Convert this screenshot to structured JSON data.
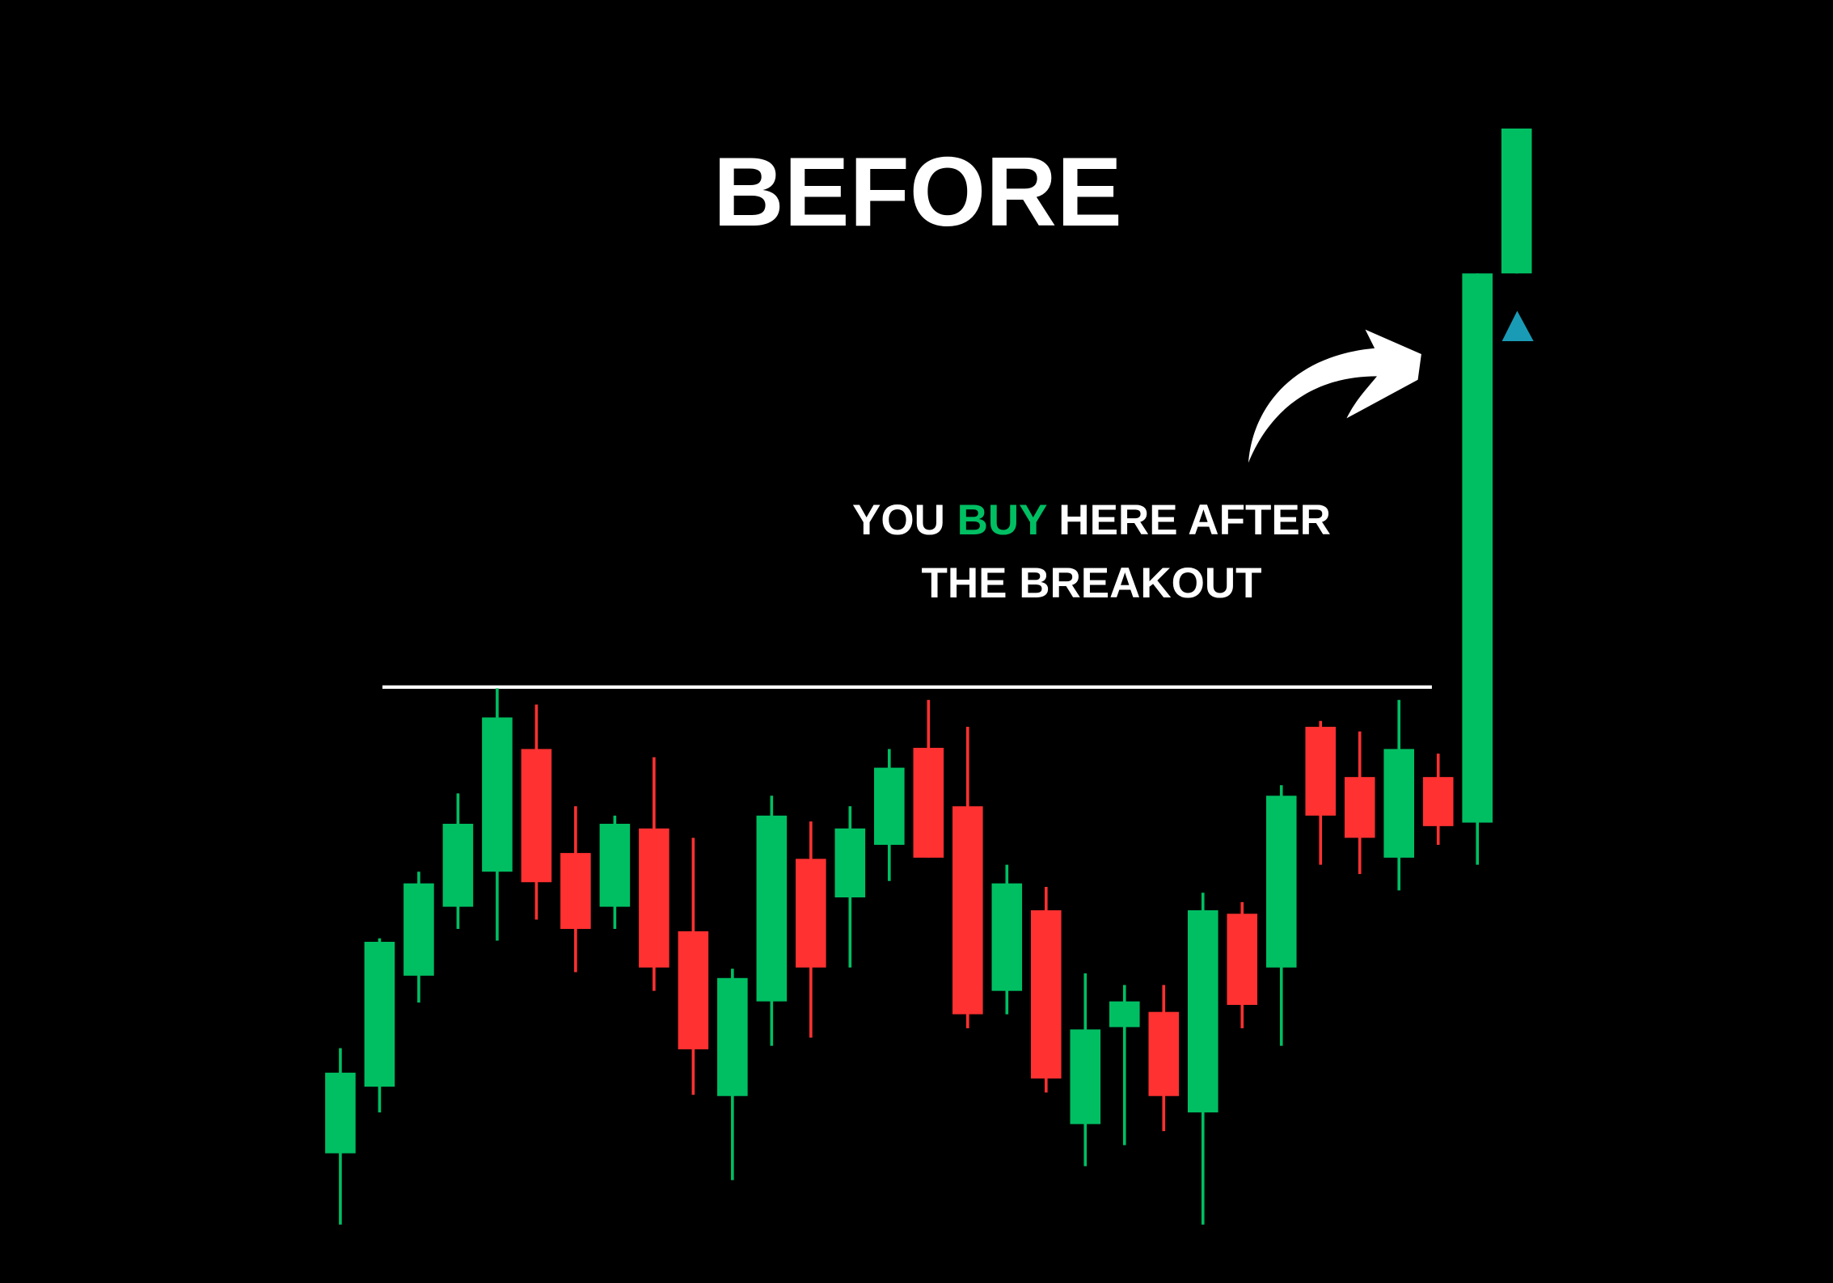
{
  "chart_data": {
    "type": "candlestick",
    "title": "BEFORE",
    "annotation": [
      "YOU",
      "BUY",
      "HERE AFTER",
      "THE BREAKOUT"
    ],
    "open": [
      111,
      168,
      263,
      322,
      352,
      457,
      368,
      322,
      389,
      301,
      160,
      241,
      363,
      330,
      375,
      458,
      408,
      250,
      319,
      136,
      219,
      232,
      146,
      316,
      270,
      476,
      433,
      364,
      433,
      394,
      864
    ],
    "high": [
      201,
      295,
      352,
      419,
      509,
      495,
      408,
      400,
      450,
      381,
      269,
      417,
      395,
      408,
      457,
      499,
      476,
      358,
      339,
      265,
      255,
      255,
      334,
      326,
      426,
      481,
      472,
      499,
      453,
      864,
      988
    ],
    "low": [
      50,
      146,
      240,
      303,
      293,
      311,
      266,
      303,
      250,
      161,
      88,
      203,
      210,
      270,
      344,
      364,
      218,
      230,
      163,
      100,
      118,
      130,
      50,
      218,
      203,
      358,
      350,
      336,
      375,
      358,
      864
    ],
    "close": [
      180,
      292,
      342,
      393,
      484,
      343,
      303,
      393,
      270,
      200,
      261,
      400,
      270,
      389,
      441,
      364,
      230,
      342,
      175,
      217,
      241,
      160,
      319,
      238,
      417,
      400,
      381,
      457,
      391,
      864,
      988
    ],
    "up_color": "#00bf63",
    "down_color": "#ff3131",
    "level": 510,
    "level_color": "#ffffff",
    "ylim": [
      0,
      1098
    ]
  }
}
